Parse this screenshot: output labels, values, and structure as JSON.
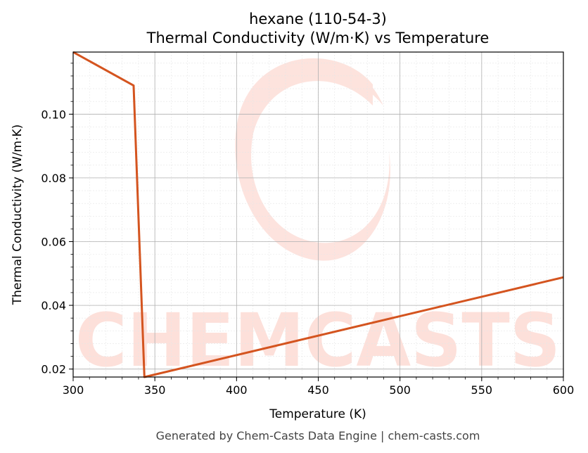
{
  "chart_data": {
    "type": "line",
    "title": "hexane (110-54-3)",
    "subtitle": "Thermal Conductivity (W/m·K) vs Temperature",
    "xlabel": "Temperature (K)",
    "ylabel": "Thermal Conductivity (W/m·K)",
    "xlim": [
      300,
      600
    ],
    "ylim": [
      0.0175,
      0.1195
    ],
    "xticks": [
      300,
      350,
      400,
      450,
      500,
      550,
      600
    ],
    "yticks": [
      0.02,
      0.04,
      0.06,
      0.08,
      0.1
    ],
    "ytick_labels": [
      "0.02",
      "0.04",
      "0.06",
      "0.08",
      "0.10"
    ],
    "grid": true,
    "series": [
      {
        "color": "#d4541f",
        "x": [
          300,
          337,
          343.6,
          600
        ],
        "y": [
          0.1195,
          0.109,
          0.0175,
          0.0488
        ]
      }
    ]
  },
  "watermark": {
    "text": "CHEMCASTS",
    "color": "#fde0da"
  },
  "footer": "Generated by Chem-Casts Data Engine | chem-casts.com"
}
